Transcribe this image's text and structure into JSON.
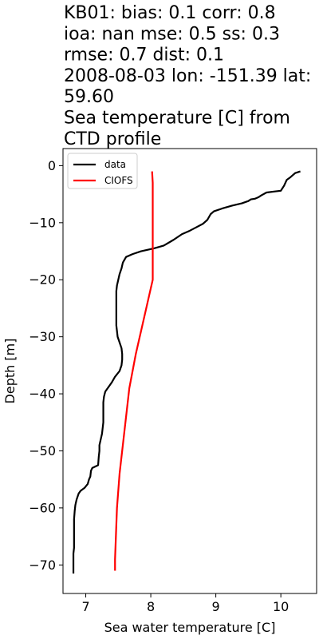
{
  "chart_data": {
    "type": "line",
    "title_lines": [
      "KB01: bias: 0.1  corr: 0.8",
      "ioa: nan  mse: 0.5  ss: 0.3",
      "rmse: 0.7  dist: 0.1",
      "2008-08-03 lon: -151.39 lat:",
      "59.60",
      "Sea temperature [C] from",
      "CTD profile"
    ],
    "xlabel": "Sea water temperature [C]",
    "ylabel": "Depth [m]",
    "xlim": [
      6.65,
      10.55
    ],
    "ylim": [
      -75,
      3
    ],
    "xticks": [
      7,
      8,
      9,
      10
    ],
    "xtick_labels": [
      "7",
      "8",
      "9",
      "10"
    ],
    "yticks": [
      0,
      -10,
      -20,
      -30,
      -40,
      -50,
      -60,
      -70
    ],
    "ytick_labels": [
      "0",
      "−10",
      "−20",
      "−30",
      "−40",
      "−50",
      "−60",
      "−70"
    ],
    "legend_position": "top-left",
    "grid": false,
    "series": [
      {
        "name": "data",
        "color": "#000000",
        "points": [
          [
            10.3,
            -1.0
          ],
          [
            10.22,
            -1.3
          ],
          [
            10.15,
            -2.0
          ],
          [
            10.09,
            -2.5
          ],
          [
            10.05,
            -3.5
          ],
          [
            10.0,
            -4.4
          ],
          [
            9.92,
            -4.5
          ],
          [
            9.78,
            -4.7
          ],
          [
            9.7,
            -5.2
          ],
          [
            9.66,
            -5.5
          ],
          [
            9.6,
            -5.8
          ],
          [
            9.54,
            -5.9
          ],
          [
            9.5,
            -6.2
          ],
          [
            9.4,
            -6.6
          ],
          [
            9.25,
            -7.0
          ],
          [
            9.1,
            -7.5
          ],
          [
            8.97,
            -8.0
          ],
          [
            8.92,
            -8.5
          ],
          [
            8.87,
            -9.5
          ],
          [
            8.8,
            -10.2
          ],
          [
            8.7,
            -10.8
          ],
          [
            8.6,
            -11.4
          ],
          [
            8.48,
            -12.0
          ],
          [
            8.35,
            -13.0
          ],
          [
            8.2,
            -14.0
          ],
          [
            8.05,
            -14.5
          ],
          [
            7.85,
            -15.0
          ],
          [
            7.72,
            -15.5
          ],
          [
            7.62,
            -16.0
          ],
          [
            7.57,
            -17.0
          ],
          [
            7.55,
            -18.0
          ],
          [
            7.52,
            -19.0
          ],
          [
            7.5,
            -20.0
          ],
          [
            7.48,
            -21.0
          ],
          [
            7.47,
            -22.0
          ],
          [
            7.47,
            -24.0
          ],
          [
            7.47,
            -26.0
          ],
          [
            7.47,
            -28.0
          ],
          [
            7.48,
            -29.0
          ],
          [
            7.49,
            -30.0
          ],
          [
            7.52,
            -31.0
          ],
          [
            7.55,
            -32.0
          ],
          [
            7.56,
            -33.0
          ],
          [
            7.56,
            -34.0
          ],
          [
            7.55,
            -35.0
          ],
          [
            7.52,
            -36.0
          ],
          [
            7.45,
            -37.0
          ],
          [
            7.4,
            -38.0
          ],
          [
            7.35,
            -38.8
          ],
          [
            7.3,
            -39.6
          ],
          [
            7.28,
            -40.5
          ],
          [
            7.27,
            -41.5
          ],
          [
            7.27,
            -43.0
          ],
          [
            7.27,
            -45.0
          ],
          [
            7.25,
            -47.0
          ],
          [
            7.23,
            -48.0
          ],
          [
            7.21,
            -49.0
          ],
          [
            7.21,
            -50.0
          ],
          [
            7.2,
            -51.0
          ],
          [
            7.19,
            -52.5
          ],
          [
            7.1,
            -53.0
          ],
          [
            7.08,
            -53.5
          ],
          [
            7.07,
            -54.5
          ],
          [
            7.05,
            -55.0
          ],
          [
            7.03,
            -55.8
          ],
          [
            6.98,
            -56.5
          ],
          [
            6.92,
            -57.0
          ],
          [
            6.89,
            -57.5
          ],
          [
            6.86,
            -58.5
          ],
          [
            6.84,
            -59.5
          ],
          [
            6.83,
            -60.5
          ],
          [
            6.82,
            -62.0
          ],
          [
            6.82,
            -63.5
          ],
          [
            6.82,
            -65.0
          ],
          [
            6.82,
            -66.0
          ],
          [
            6.82,
            -67.0
          ],
          [
            6.81,
            -68.0
          ],
          [
            6.81,
            -69.0
          ],
          [
            6.81,
            -70.0
          ],
          [
            6.81,
            -71.5
          ]
        ]
      },
      {
        "name": "CIOFS",
        "color": "#ff0000",
        "points": [
          [
            8.02,
            -1.0
          ],
          [
            8.03,
            -3.0
          ],
          [
            8.03,
            -6.0
          ],
          [
            8.03,
            -10.0
          ],
          [
            8.03,
            -14.0
          ],
          [
            8.03,
            -17.0
          ],
          [
            8.03,
            -20.0
          ],
          [
            7.99,
            -22.0
          ],
          [
            7.95,
            -24.0
          ],
          [
            7.89,
            -27.0
          ],
          [
            7.83,
            -30.0
          ],
          [
            7.77,
            -33.0
          ],
          [
            7.72,
            -36.0
          ],
          [
            7.67,
            -39.0
          ],
          [
            7.64,
            -42.0
          ],
          [
            7.61,
            -45.0
          ],
          [
            7.58,
            -48.0
          ],
          [
            7.55,
            -51.0
          ],
          [
            7.52,
            -54.0
          ],
          [
            7.5,
            -57.0
          ],
          [
            7.48,
            -60.0
          ],
          [
            7.47,
            -63.0
          ],
          [
            7.46,
            -66.0
          ],
          [
            7.45,
            -69.0
          ],
          [
            7.45,
            -71.0
          ]
        ]
      }
    ]
  }
}
